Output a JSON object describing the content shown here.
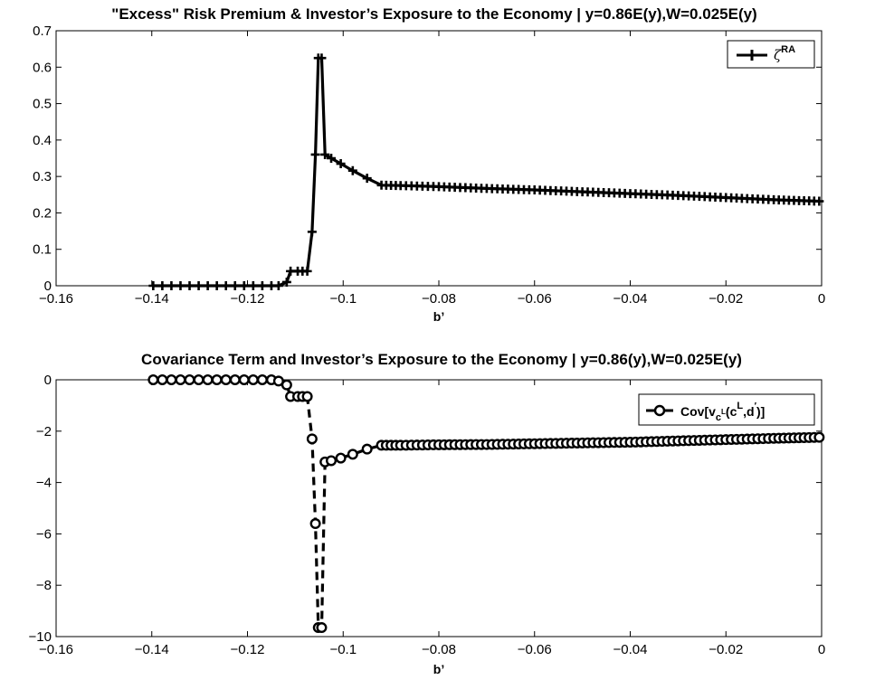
{
  "chart_data": [
    {
      "type": "line",
      "title": "\"Excess\" Risk Premium & Investor’s Exposure to the Economy | y=0.86E(y),W=0.025E(y)",
      "xlabel": "b’",
      "ylabel": "",
      "xlim": [
        -0.16,
        0
      ],
      "ylim": [
        0,
        0.7
      ],
      "xticks": [
        -0.16,
        -0.14,
        -0.12,
        -0.1,
        -0.08,
        -0.06,
        -0.04,
        -0.02,
        0
      ],
      "xtick_labels": [
        "−0.16",
        "−0.14",
        "−0.12",
        "−0.1",
        "−0.08",
        "−0.06",
        "−0.04",
        "−0.02",
        "0"
      ],
      "yticks": [
        0,
        0.1,
        0.2,
        0.3,
        0.4,
        0.5,
        0.6,
        0.7
      ],
      "ytick_labels": [
        "0",
        "0.1",
        "0.2",
        "0.3",
        "0.4",
        "0.5",
        "0.6",
        "0.7"
      ],
      "legend": {
        "position": "top-right",
        "symbol": "ζ",
        "superscript": "RA"
      },
      "series": [
        {
          "name": "ζRA",
          "marker": "plus",
          "line": "solid",
          "points": [
            [
              -0.1397,
              0
            ],
            [
              -0.1378,
              0
            ],
            [
              -0.1359,
              0
            ],
            [
              -0.134,
              0
            ],
            [
              -0.1321,
              0
            ],
            [
              -0.1302,
              0
            ],
            [
              -0.1283,
              0
            ],
            [
              -0.1264,
              0
            ],
            [
              -0.1245,
              0
            ],
            [
              -0.1226,
              0
            ],
            [
              -0.1207,
              0
            ],
            [
              -0.1188,
              0
            ],
            [
              -0.1169,
              0
            ],
            [
              -0.115,
              0
            ],
            [
              -0.1135,
              0
            ],
            [
              -0.1118,
              0.01
            ],
            [
              -0.111,
              0.04
            ],
            [
              -0.1095,
              0.04
            ],
            [
              -0.1085,
              0.04
            ],
            [
              -0.1075,
              0.04
            ],
            [
              -0.1065,
              0.148
            ],
            [
              -0.1058,
              0.36
            ],
            [
              -0.1052,
              0.625
            ],
            [
              -0.1045,
              0.625
            ],
            [
              -0.1038,
              0.36
            ],
            [
              -0.1025,
              0.35
            ],
            [
              -0.1005,
              0.335
            ],
            [
              -0.098,
              0.316
            ],
            [
              -0.095,
              0.295
            ],
            [
              -0.092,
              0.276
            ],
            [
              -0.088,
              0.275
            ],
            [
              -0.08,
              0.272
            ],
            [
              -0.07,
              0.267
            ],
            [
              -0.06,
              0.263
            ],
            [
              -0.05,
              0.258
            ],
            [
              -0.04,
              0.253
            ],
            [
              -0.03,
              0.248
            ],
            [
              -0.02,
              0.242
            ],
            [
              -0.01,
              0.236
            ],
            [
              -0.0005,
              0.232
            ]
          ]
        }
      ]
    },
    {
      "type": "line",
      "title": "Covariance Term and Investor’s Exposure to the Economy | y=0.86(y),W=0.025E(y)",
      "xlabel": "b’",
      "ylabel": "",
      "xlim": [
        -0.16,
        0
      ],
      "ylim": [
        -10,
        0
      ],
      "xticks": [
        -0.16,
        -0.14,
        -0.12,
        -0.1,
        -0.08,
        -0.06,
        -0.04,
        -0.02,
        0
      ],
      "xtick_labels": [
        "−0.16",
        "−0.14",
        "−0.12",
        "−0.1",
        "−0.08",
        "−0.06",
        "−0.04",
        "−0.02",
        "0"
      ],
      "yticks": [
        -10,
        -8,
        -6,
        -4,
        -2,
        0
      ],
      "ytick_labels": [
        "−10",
        "−8",
        "−6",
        "−4",
        "−2",
        "0"
      ],
      "legend": {
        "position": "top-right",
        "prefix": "Cov[v",
        "sub_c": "c",
        "sub_sup_L": "L",
        "mid": "(c",
        "sup_L": "L",
        "tail": ",d",
        "prime": "′",
        "end": ")]"
      },
      "series": [
        {
          "name": "Cov[vcL(cL,d′)]",
          "marker": "circle",
          "line": "dashed",
          "points": [
            [
              -0.1397,
              0
            ],
            [
              -0.1378,
              0
            ],
            [
              -0.1359,
              0
            ],
            [
              -0.134,
              0
            ],
            [
              -0.1321,
              0
            ],
            [
              -0.1302,
              0
            ],
            [
              -0.1283,
              0
            ],
            [
              -0.1264,
              0
            ],
            [
              -0.1245,
              0
            ],
            [
              -0.1226,
              0
            ],
            [
              -0.1207,
              0
            ],
            [
              -0.1188,
              0
            ],
            [
              -0.1169,
              0
            ],
            [
              -0.115,
              0
            ],
            [
              -0.1135,
              -0.05
            ],
            [
              -0.1118,
              -0.2
            ],
            [
              -0.111,
              -0.65
            ],
            [
              -0.1095,
              -0.65
            ],
            [
              -0.1085,
              -0.65
            ],
            [
              -0.1075,
              -0.65
            ],
            [
              -0.1065,
              -2.3
            ],
            [
              -0.1058,
              -5.6
            ],
            [
              -0.1052,
              -9.65
            ],
            [
              -0.1045,
              -9.65
            ],
            [
              -0.1038,
              -3.2
            ],
            [
              -0.1025,
              -3.15
            ],
            [
              -0.1005,
              -3.05
            ],
            [
              -0.098,
              -2.9
            ],
            [
              -0.095,
              -2.7
            ],
            [
              -0.092,
              -2.55
            ],
            [
              -0.088,
              -2.55
            ],
            [
              -0.08,
              -2.53
            ],
            [
              -0.07,
              -2.52
            ],
            [
              -0.06,
              -2.49
            ],
            [
              -0.05,
              -2.46
            ],
            [
              -0.04,
              -2.43
            ],
            [
              -0.03,
              -2.38
            ],
            [
              -0.02,
              -2.33
            ],
            [
              -0.01,
              -2.28
            ],
            [
              -0.0005,
              -2.24
            ]
          ]
        }
      ]
    }
  ]
}
